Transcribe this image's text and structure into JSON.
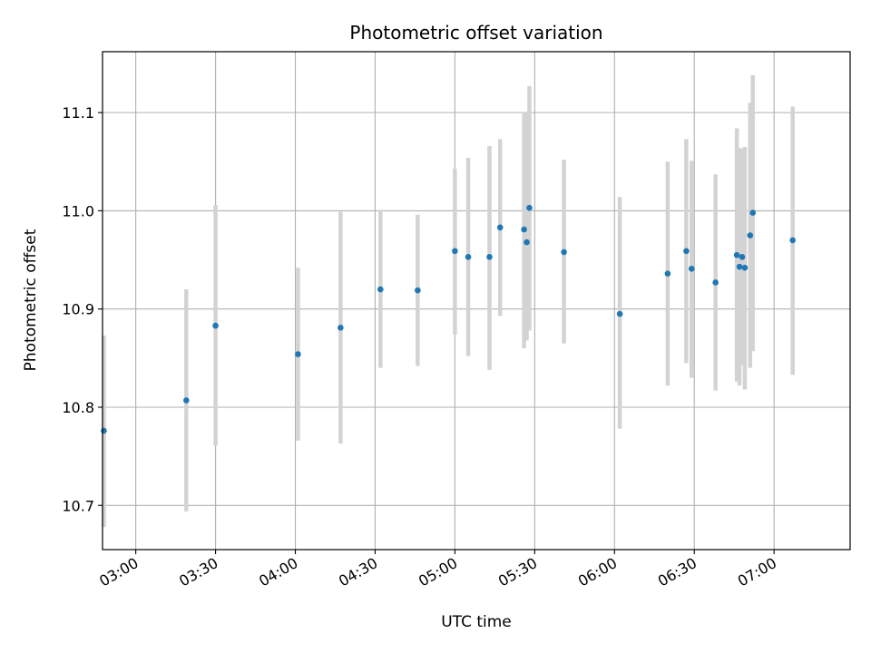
{
  "chart_data": {
    "type": "scatter",
    "title": "Photometric offset variation",
    "xlabel": "UTC time",
    "ylabel": "Photometric offset",
    "x_ticks": [
      "03:00",
      "03:30",
      "04:00",
      "04:30",
      "05:00",
      "05:30",
      "06:00",
      "06:30",
      "07:00"
    ],
    "x_tick_minutes": [
      180,
      210,
      240,
      270,
      300,
      330,
      360,
      390,
      420
    ],
    "y_ticks": [
      "10.7",
      "10.8",
      "10.9",
      "11.0",
      "11.1"
    ],
    "y_tick_values": [
      10.7,
      10.8,
      10.9,
      11.0,
      11.1
    ],
    "xlim_minutes": [
      167.5,
      448.6
    ],
    "ylim": [
      10.655,
      11.162
    ],
    "grid": true,
    "colors": {
      "point": "#1f77b4",
      "errorbar": "#d3d3d3",
      "grid": "#b0b0b0"
    },
    "points": [
      {
        "t": "02:48",
        "y": 10.776,
        "lo": 10.678,
        "hi": 10.873
      },
      {
        "t": "03:19",
        "y": 10.807,
        "lo": 10.694,
        "hi": 10.92
      },
      {
        "t": "03:30",
        "y": 10.883,
        "lo": 10.761,
        "hi": 11.006
      },
      {
        "t": "04:01",
        "y": 10.854,
        "lo": 10.766,
        "hi": 10.942
      },
      {
        "t": "04:17",
        "y": 10.881,
        "lo": 10.763,
        "hi": 10.999
      },
      {
        "t": "04:32",
        "y": 10.92,
        "lo": 10.84,
        "hi": 11.001
      },
      {
        "t": "04:46",
        "y": 10.919,
        "lo": 10.842,
        "hi": 10.996
      },
      {
        "t": "05:00",
        "y": 10.959,
        "lo": 10.874,
        "hi": 11.043
      },
      {
        "t": "05:05",
        "y": 10.953,
        "lo": 10.852,
        "hi": 11.054
      },
      {
        "t": "05:13",
        "y": 10.953,
        "lo": 10.838,
        "hi": 11.066
      },
      {
        "t": "05:17",
        "y": 10.983,
        "lo": 10.893,
        "hi": 11.073
      },
      {
        "t": "05:26",
        "y": 10.981,
        "lo": 10.86,
        "hi": 11.099
      },
      {
        "t": "05:27",
        "y": 10.968,
        "lo": 10.868,
        "hi": 11.1
      },
      {
        "t": "05:28",
        "y": 11.003,
        "lo": 10.878,
        "hi": 11.127
      },
      {
        "t": "05:41",
        "y": 10.958,
        "lo": 10.865,
        "hi": 11.052
      },
      {
        "t": "06:02",
        "y": 10.895,
        "lo": 10.778,
        "hi": 11.014
      },
      {
        "t": "06:20",
        "y": 10.936,
        "lo": 10.822,
        "hi": 11.05
      },
      {
        "t": "06:27",
        "y": 10.959,
        "lo": 10.845,
        "hi": 11.073
      },
      {
        "t": "06:29",
        "y": 10.941,
        "lo": 10.83,
        "hi": 11.051
      },
      {
        "t": "06:38",
        "y": 10.927,
        "lo": 10.817,
        "hi": 11.037
      },
      {
        "t": "06:46",
        "y": 10.955,
        "lo": 10.826,
        "hi": 11.084
      },
      {
        "t": "06:47",
        "y": 10.943,
        "lo": 10.822,
        "hi": 11.064
      },
      {
        "t": "06:48",
        "y": 10.953,
        "lo": 10.843,
        "hi": 11.063
      },
      {
        "t": "06:49",
        "y": 10.942,
        "lo": 10.818,
        "hi": 11.065
      },
      {
        "t": "06:51",
        "y": 10.975,
        "lo": 10.84,
        "hi": 11.11
      },
      {
        "t": "06:52",
        "y": 10.998,
        "lo": 10.857,
        "hi": 11.138
      },
      {
        "t": "07:07",
        "y": 10.97,
        "lo": 10.833,
        "hi": 11.106
      }
    ]
  }
}
